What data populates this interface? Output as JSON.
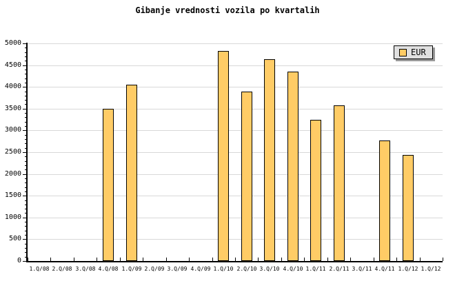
{
  "chart_data": {
    "type": "bar",
    "title": "Gibanje vrednosti vozila po kvartalih",
    "categories": [
      "1.Q/08",
      "2.Q/08",
      "3.Q/08",
      "4.Q/08",
      "1.Q/09",
      "2.Q/09",
      "3.Q/09",
      "4.Q/09",
      "1.Q/10",
      "2.Q/10",
      "3.Q/10",
      "4.Q/10",
      "1.Q/11",
      "2.Q/11",
      "3.Q/11",
      "4.Q/11",
      "1.Q/12",
      "1.Q/12"
    ],
    "series": [
      {
        "name": "EUR",
        "values": [
          0,
          0,
          0,
          3500,
          4050,
          0,
          0,
          0,
          4825,
          3900,
          4630,
          4350,
          3240,
          3570,
          0,
          2775,
          2440,
          0
        ]
      }
    ],
    "xlabel": "",
    "ylabel": "",
    "ylim": [
      0,
      5000
    ],
    "ytick_step": 500,
    "y_minor_tick_step": 100,
    "yticklabels": [
      "0",
      "500",
      "1000",
      "1500",
      "2000",
      "2500",
      "3000",
      "3500",
      "4000",
      "4500",
      "5000"
    ],
    "grid": true,
    "legend": {
      "label": "EUR",
      "position": "top-right"
    },
    "colors": {
      "bar_fill": "#FFCC66",
      "bar_border": "#000000",
      "gridline": "#D8D8D8",
      "axis": "#000000",
      "text": "#000000",
      "legend_bg": "#E0E0E0",
      "legend_shadow": "#999999",
      "background": "#FFFFFF"
    }
  }
}
